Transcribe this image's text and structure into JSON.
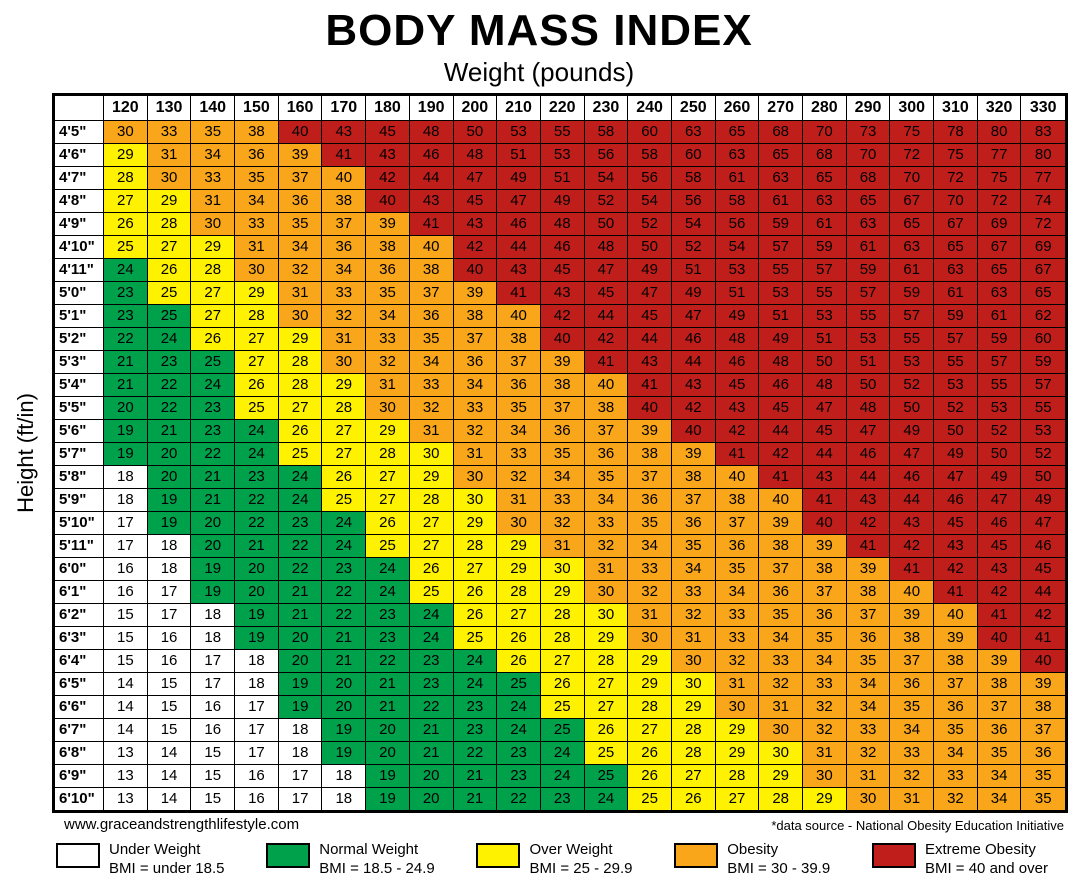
{
  "title": "BODY MASS INDEX",
  "subtitle": "Weight (pounds)",
  "y_axis_label": "Height (ft/in)",
  "footer": {
    "website": "www.graceandstrengthlifestyle.com",
    "source_note": "*data source - National Obesity Education Initiative"
  },
  "legend": [
    {
      "code": "w",
      "label": "Under Weight",
      "range": "BMI = under 18.5",
      "color": "#FFFFFF"
    },
    {
      "code": "g",
      "label": "Normal Weight",
      "range": "BMI = 18.5 - 24.9",
      "color": "#00A14B"
    },
    {
      "code": "y",
      "label": "Over Weight",
      "range": "BMI = 25 - 29.9",
      "color": "#FFF200"
    },
    {
      "code": "o",
      "label": "Obesity",
      "range": "BMI = 30 - 39.9",
      "color": "#FAA61A"
    },
    {
      "code": "r",
      "label": "Extreme Obesity",
      "range": "BMI = 40 and over",
      "color": "#C01E1B"
    }
  ],
  "chart_data": {
    "type": "heatmap",
    "title": "BODY MASS INDEX",
    "xlabel": "Weight (pounds)",
    "ylabel": "Height (ft/in)",
    "x_weights_lb": [
      120,
      130,
      140,
      150,
      160,
      170,
      180,
      190,
      200,
      210,
      220,
      230,
      240,
      250,
      260,
      270,
      280,
      290,
      300,
      310,
      320,
      330
    ],
    "y_heights": [
      "4'5\"",
      "4'6\"",
      "4'7\"",
      "4'8\"",
      "4'9\"",
      "4'10\"",
      "4'11\"",
      "5'0\"",
      "5'1\"",
      "5'2\"",
      "5'3\"",
      "5'4\"",
      "5'5\"",
      "5'6\"",
      "5'7\"",
      "5'8\"",
      "5'9\"",
      "5'10\"",
      "5'11\"",
      "6'0\"",
      "6'1\"",
      "6'2\"",
      "6'3\"",
      "6'4\"",
      "6'5\"",
      "6'6\"",
      "6'7\"",
      "6'8\"",
      "6'9\"",
      "6'10\""
    ],
    "bmi_values": [
      [
        30,
        33,
        35,
        38,
        40,
        43,
        45,
        48,
        50,
        53,
        55,
        58,
        60,
        63,
        65,
        68,
        70,
        73,
        75,
        78,
        80,
        83
      ],
      [
        29,
        31,
        34,
        36,
        39,
        41,
        43,
        46,
        48,
        51,
        53,
        56,
        58,
        60,
        63,
        65,
        68,
        70,
        72,
        75,
        77,
        80
      ],
      [
        28,
        30,
        33,
        35,
        37,
        40,
        42,
        44,
        47,
        49,
        51,
        54,
        56,
        58,
        61,
        63,
        65,
        68,
        70,
        72,
        75,
        77
      ],
      [
        27,
        29,
        31,
        34,
        36,
        38,
        40,
        43,
        45,
        47,
        49,
        52,
        54,
        56,
        58,
        61,
        63,
        65,
        67,
        70,
        72,
        74
      ],
      [
        26,
        28,
        30,
        33,
        35,
        37,
        39,
        41,
        43,
        46,
        48,
        50,
        52,
        54,
        56,
        59,
        61,
        63,
        65,
        67,
        69,
        72
      ],
      [
        25,
        27,
        29,
        31,
        34,
        36,
        38,
        40,
        42,
        44,
        46,
        48,
        50,
        52,
        54,
        57,
        59,
        61,
        63,
        65,
        67,
        69
      ],
      [
        24,
        26,
        28,
        30,
        32,
        34,
        36,
        38,
        40,
        43,
        45,
        47,
        49,
        51,
        53,
        55,
        57,
        59,
        61,
        63,
        65,
        67
      ],
      [
        23,
        25,
        27,
        29,
        31,
        33,
        35,
        37,
        39,
        41,
        43,
        45,
        47,
        49,
        51,
        53,
        55,
        57,
        59,
        61,
        63,
        65
      ],
      [
        23,
        25,
        27,
        28,
        30,
        32,
        34,
        36,
        38,
        40,
        42,
        44,
        45,
        47,
        49,
        51,
        53,
        55,
        57,
        59,
        61,
        62
      ],
      [
        22,
        24,
        26,
        27,
        29,
        31,
        33,
        35,
        37,
        38,
        40,
        42,
        44,
        46,
        48,
        49,
        51,
        53,
        55,
        57,
        59,
        60
      ],
      [
        21,
        23,
        25,
        27,
        28,
        30,
        32,
        34,
        36,
        37,
        39,
        41,
        43,
        44,
        46,
        48,
        50,
        51,
        53,
        55,
        57,
        59
      ],
      [
        21,
        22,
        24,
        26,
        28,
        29,
        31,
        33,
        34,
        36,
        38,
        40,
        41,
        43,
        45,
        46,
        48,
        50,
        52,
        53,
        55,
        57
      ],
      [
        20,
        22,
        23,
        25,
        27,
        28,
        30,
        32,
        33,
        35,
        37,
        38,
        40,
        42,
        43,
        45,
        47,
        48,
        50,
        52,
        53,
        55
      ],
      [
        19,
        21,
        23,
        24,
        26,
        27,
        29,
        31,
        32,
        34,
        36,
        37,
        39,
        40,
        42,
        44,
        45,
        47,
        49,
        50,
        52,
        53
      ],
      [
        19,
        20,
        22,
        24,
        25,
        27,
        28,
        30,
        31,
        33,
        35,
        36,
        38,
        39,
        41,
        42,
        44,
        46,
        47,
        49,
        50,
        52
      ],
      [
        18,
        20,
        21,
        23,
        24,
        26,
        27,
        29,
        30,
        32,
        34,
        35,
        37,
        38,
        40,
        41,
        43,
        44,
        46,
        47,
        49,
        50
      ],
      [
        18,
        19,
        21,
        22,
        24,
        25,
        27,
        28,
        30,
        31,
        33,
        34,
        36,
        37,
        38,
        40,
        41,
        43,
        44,
        46,
        47,
        49
      ],
      [
        17,
        19,
        20,
        22,
        23,
        24,
        26,
        27,
        29,
        30,
        32,
        33,
        35,
        36,
        37,
        39,
        40,
        42,
        43,
        45,
        46,
        47
      ],
      [
        17,
        18,
        20,
        21,
        22,
        24,
        25,
        27,
        28,
        29,
        31,
        32,
        34,
        35,
        36,
        38,
        39,
        41,
        42,
        43,
        45,
        46
      ],
      [
        16,
        18,
        19,
        20,
        22,
        23,
        24,
        26,
        27,
        29,
        30,
        31,
        33,
        34,
        35,
        37,
        38,
        39,
        41,
        42,
        43,
        45
      ],
      [
        16,
        17,
        19,
        20,
        21,
        22,
        24,
        25,
        26,
        28,
        29,
        30,
        32,
        33,
        34,
        36,
        37,
        38,
        40,
        41,
        42,
        44
      ],
      [
        15,
        17,
        18,
        19,
        21,
        22,
        23,
        24,
        26,
        27,
        28,
        30,
        31,
        32,
        33,
        35,
        36,
        37,
        39,
        40,
        41,
        42
      ],
      [
        15,
        16,
        18,
        19,
        20,
        21,
        23,
        24,
        25,
        26,
        28,
        29,
        30,
        31,
        33,
        34,
        35,
        36,
        38,
        39,
        40,
        41
      ],
      [
        15,
        16,
        17,
        18,
        20,
        21,
        22,
        23,
        24,
        26,
        27,
        28,
        29,
        30,
        32,
        33,
        34,
        35,
        37,
        38,
        39,
        40
      ],
      [
        14,
        15,
        17,
        18,
        19,
        20,
        21,
        23,
        24,
        25,
        26,
        27,
        29,
        30,
        31,
        32,
        33,
        34,
        36,
        37,
        38,
        39
      ],
      [
        14,
        15,
        16,
        17,
        19,
        20,
        21,
        22,
        23,
        24,
        25,
        27,
        28,
        29,
        30,
        31,
        32,
        34,
        35,
        36,
        37,
        38
      ],
      [
        14,
        15,
        16,
        17,
        18,
        19,
        20,
        21,
        23,
        24,
        25,
        26,
        27,
        28,
        29,
        30,
        32,
        33,
        34,
        35,
        36,
        37
      ],
      [
        13,
        14,
        15,
        17,
        18,
        19,
        20,
        21,
        22,
        23,
        24,
        25,
        26,
        28,
        29,
        30,
        31,
        32,
        33,
        34,
        35,
        36
      ],
      [
        13,
        14,
        15,
        16,
        17,
        18,
        19,
        20,
        21,
        23,
        24,
        25,
        26,
        27,
        28,
        29,
        30,
        31,
        32,
        33,
        34,
        35
      ],
      [
        13,
        14,
        15,
        16,
        17,
        18,
        19,
        20,
        21,
        22,
        23,
        24,
        25,
        26,
        27,
        28,
        29,
        30,
        31,
        32,
        34,
        35
      ]
    ],
    "cell_categories": [
      "oooorrrrrrrrrrrrrrrrrr",
      "yoooorrrrrrrrrrrrrrrrr",
      "yooooorrrrrrrrrrrrrrrr",
      "yyoooorrrrrrrrrrrrrrrr",
      "yyooooorrrrrrrrrrrrrrr",
      "yyyooooorrrrrrrrrrrrrr",
      "gyyooooorrrrrrrrrrrrrr",
      "gyyyooooorrrrrrrrrrrrr",
      "ggyyoooooorrrrrrrrrrrr",
      "ggyyyooooorrrrrrrrrrrr",
      "gggyyoooooorrrrrrrrrrr",
      "gggyyyoooooorrrrrrrrrr",
      "gggyyyoooooorrrrrrrrrr",
      "ggggyyyoooooorrrrrrrrr",
      "ggggyyyyoooooorrrrrrrr",
      "wggggyyyooooooorrrrrrr",
      "wggggyyyyooooooorrrrrr",
      "wgggggyyyooooooorrrrrr",
      "wwggggyyyyooooooorrrrr",
      "wwgggggyyyyooooooorrrr",
      "wwgggggyyyyoooooooorrr",
      "wwwgggggyyyyoooooooorr",
      "wwwgggggyyyyoooooooorr",
      "wwwwgggggyyyyoooooooor",
      "wwwwggggggyyyyoooooooo",
      "wwwwggggggyyyyoooooooo",
      "wwwwwggggggyyyyooooooo",
      "wwwwwggggggyyyyyoooooo",
      "wwwwwwggggggyyyyoooooo",
      "wwwwwwggggggyyyyyooooo"
    ]
  }
}
